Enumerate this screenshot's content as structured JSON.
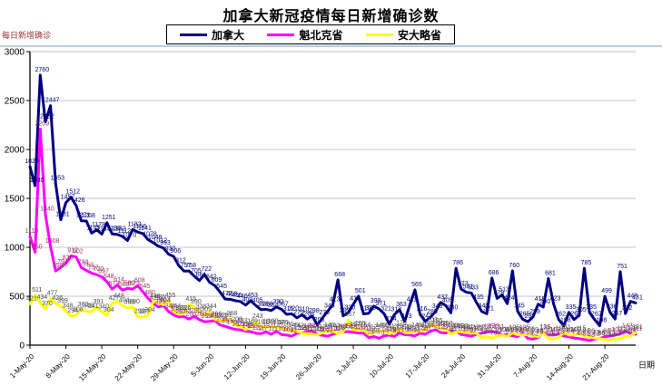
{
  "title": "加拿大新冠疫情每日新增确诊数",
  "y_axis": {
    "title": "每日新增确诊"
  },
  "x_axis": {
    "title": "日期"
  },
  "chart_data": {
    "type": "line",
    "title": "加拿大新冠疫情每日新增确诊数",
    "xlabel": "日期",
    "ylabel": "每日新增确诊",
    "ylim": [
      0,
      3000
    ],
    "y_ticks": [
      0,
      500,
      1000,
      1500,
      2000,
      2500,
      3000
    ],
    "grid": true,
    "legend_position": "top",
    "x_start_date": "1-May-20",
    "x_tick_interval_days": 7,
    "x_tick_labels": [
      "1-May-20",
      "8-May-20",
      "15-May-20",
      "22-May-20",
      "29-May-20",
      "5-Jun-20",
      "12-Jun-20",
      "19-Jun-20",
      "26-Jun-20",
      "3-Jul-20",
      "10-Jul-20",
      "17-Jul-20",
      "24-Jul-20",
      "31-Jul-20",
      "7-Aug-20",
      "14-Aug-20",
      "21-Aug-20"
    ],
    "n_points": 119,
    "series": [
      {
        "name": "加拿大",
        "color": "#000080",
        "label_color": "#000080",
        "values": [
          1825,
          1630,
          2760,
          2282,
          2447,
          1653,
          1281,
          1457,
          1512,
          1426,
          1271,
          1268,
          1145,
          1178,
          1135,
          1251,
          1138,
          1132,
          1112,
          1070,
          1182,
          1156,
          1141,
          1078,
          1048,
          1012,
          993,
          930,
          906,
          812,
          757,
          758,
          705,
          661,
          722,
          642,
          609,
          545,
          472,
          468,
          455,
          446,
          409,
          453,
          405,
          363,
          366,
          354,
          390,
          367,
          315,
          320,
          279,
          310,
          266,
          298,
          206,
          279,
          348,
          413,
          668,
          299,
          330,
          419,
          501,
          319,
          325,
          399,
          371,
          321,
          214,
          312,
          363,
          243,
          411,
          565,
          316,
          243,
          285,
          343,
          437,
          405,
          330,
          786,
          573,
          541,
          533,
          435,
          345,
          321,
          686,
          478,
          513,
          424,
          760,
          345,
          265,
          239,
          289,
          418,
          390,
          681,
          423,
          262,
          198,
          335,
          262,
          305,
          785,
          335,
          262,
          198,
          499,
          336,
          267,
          751,
          322,
          448,
          431
        ]
      },
      {
        "name": "魁北克省",
        "color": "#FF00FF",
        "label_color": "#993366",
        "values": [
          1110,
          950,
          2209,
          1340,
          1008,
          758,
          794,
          836,
          912,
          902,
          793,
          763,
          737,
          720,
          697,
          648,
          573,
          614,
          563,
          580,
          573,
          608,
          545,
          480,
          425,
          391,
          404,
          344,
          308,
          287,
          292,
          266,
          295,
          260,
          239,
          243,
          251,
          208,
          193,
          175,
          161,
          156,
          142,
          138,
          122,
          117,
          137,
          111,
          142,
          109,
          103,
          92,
          121,
          124,
          138,
          144,
          109,
          100,
          92,
          111,
          123,
          135,
          139,
          131,
          124,
          123,
          76,
          88,
          70,
          95,
          103,
          89,
          125,
          106,
          104,
          94,
          122,
          111,
          142,
          158,
          129,
          124,
          148,
          141,
          109,
          100,
          92,
          111,
          123,
          135,
          139,
          131,
          104,
          106,
          95,
          88,
          125,
          68,
          62,
          78,
          131,
          104,
          103,
          115,
          94,
          86,
          73,
          66,
          58,
          48,
          62,
          68,
          86,
          94,
          103,
          115,
          142,
          119,
          111
        ]
      },
      {
        "name": "安大略省",
        "color": "#FFFF00",
        "label_color": "#4d4d4d",
        "values": [
          421,
          511,
          434,
          370,
          477,
          426,
          399,
          348,
          294,
          308,
          363,
          345,
          341,
          391,
          340,
          304,
          427,
          448,
          404,
          383,
          390,
          292,
          287,
          304,
          446,
          435,
          413,
          455,
          344,
          323,
          326,
          415,
          390,
          338,
          309,
          344,
          266,
          243,
          251,
          268,
          208,
          193,
          158,
          189,
          243,
          181,
          184,
          190,
          178,
          175,
          161,
          149,
          142,
          122,
          117,
          111,
          103,
          129,
          148,
          143,
          116,
          135,
          257,
          157,
          165,
          154,
          112,
          129,
          148,
          143,
          116,
          135,
          170,
          129,
          124,
          148,
          141,
          158,
          203,
          195,
          166,
          168,
          111,
          135,
          139,
          131,
          124,
          123,
          76,
          88,
          70,
          95,
          103,
          89,
          125,
          106,
          104,
          106,
          95,
          88,
          125,
          68,
          62,
          78,
          131,
          104,
          103,
          115,
          94,
          86,
          73,
          66,
          58,
          48,
          62,
          68,
          86,
          94,
          131
        ]
      }
    ]
  }
}
